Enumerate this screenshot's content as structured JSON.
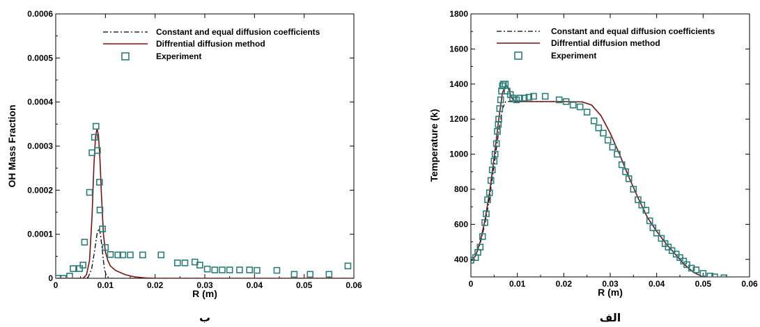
{
  "chart_data": [
    {
      "panel": "left",
      "type": "line",
      "caption": "ب",
      "xlabel": "R (m)",
      "ylabel": "OH Mass Fraction",
      "xlim": [
        0,
        0.06
      ],
      "ylim": [
        0,
        0.0006
      ],
      "xticks": [
        0,
        0.01,
        0.02,
        0.03,
        0.04,
        0.05,
        0.06
      ],
      "xtick_labels": [
        "0",
        "0.01",
        "0.02",
        "0.03",
        "0.04",
        "0.05",
        "0.06"
      ],
      "yticks": [
        0,
        0.0001,
        0.0002,
        0.0003,
        0.0004,
        0.0005,
        0.0006
      ],
      "ytick_labels": [
        "0",
        "0.0001",
        "0.0002",
        "0.0003",
        "0.0004",
        "0.0005",
        "0.0006"
      ],
      "legend_position": "top-right",
      "series": [
        {
          "name": "Constant and equal diffusion coefficients",
          "style": "dash-dot",
          "color": "#000000",
          "points": [
            [
              0,
              0
            ],
            [
              0.006,
              0
            ],
            [
              0.0065,
              2e-06
            ],
            [
              0.0072,
              2e-05
            ],
            [
              0.0078,
              6e-05
            ],
            [
              0.0083,
              0.0001
            ],
            [
              0.0087,
              0.000113
            ],
            [
              0.009,
              0.0001
            ],
            [
              0.0095,
              5e-05
            ],
            [
              0.0098,
              2e-05
            ],
            [
              0.0102,
              6e-06
            ],
            [
              0.0108,
              0
            ],
            [
              0.06,
              0
            ]
          ]
        },
        {
          "name": "Diffrential diffusion method",
          "style": "solid",
          "color": "#7a1212",
          "points": [
            [
              0,
              0
            ],
            [
              0.0055,
              0
            ],
            [
              0.0062,
              8e-06
            ],
            [
              0.0068,
              4e-05
            ],
            [
              0.0073,
              0.00014
            ],
            [
              0.0077,
              0.00026
            ],
            [
              0.008,
              0.00032
            ],
            [
              0.0083,
              0.00034
            ],
            [
              0.0086,
              0.000325
            ],
            [
              0.0089,
              0.00027
            ],
            [
              0.0092,
              0.00019
            ],
            [
              0.0096,
              0.0001
            ],
            [
              0.01,
              6e-05
            ],
            [
              0.0105,
              4e-05
            ],
            [
              0.011,
              2.8e-05
            ],
            [
              0.012,
              1.8e-05
            ],
            [
              0.014,
              8e-06
            ],
            [
              0.016,
              3e-06
            ],
            [
              0.018,
              1e-06
            ],
            [
              0.02,
              0
            ],
            [
              0.06,
              0
            ]
          ]
        },
        {
          "name": "Experiment",
          "style": "square-marker",
          "color": "#2a7d78",
          "points": [
            [
              0.0005,
              0
            ],
            [
              0.0015,
              0
            ],
            [
              0.0028,
              5e-06
            ],
            [
              0.0035,
              2.2e-05
            ],
            [
              0.0048,
              2.2e-05
            ],
            [
              0.0055,
              3e-05
            ],
            [
              0.0058,
              8.2e-05
            ],
            [
              0.0068,
              0.000195
            ],
            [
              0.0073,
              0.000285
            ],
            [
              0.0078,
              0.00032
            ],
            [
              0.0081,
              0.000345
            ],
            [
              0.0084,
              0.00029
            ],
            [
              0.0088,
              0.000218
            ],
            [
              0.0089,
              0.000155
            ],
            [
              0.0094,
              0.000112
            ],
            [
              0.01,
              7e-05
            ],
            [
              0.011,
              5.4e-05
            ],
            [
              0.0125,
              5.3e-05
            ],
            [
              0.0135,
              5.3e-05
            ],
            [
              0.015,
              5.3e-05
            ],
            [
              0.0175,
              5.3e-05
            ],
            [
              0.0212,
              5.3e-05
            ],
            [
              0.0245,
              3.5e-05
            ],
            [
              0.026,
              3.5e-05
            ],
            [
              0.028,
              3.7e-05
            ],
            [
              0.029,
              3e-05
            ],
            [
              0.0305,
              2.1e-05
            ],
            [
              0.032,
              1.9e-05
            ],
            [
              0.0335,
              1.9e-05
            ],
            [
              0.035,
              1.9e-05
            ],
            [
              0.037,
              1.9e-05
            ],
            [
              0.039,
              1.9e-05
            ],
            [
              0.0405,
              1.8e-05
            ],
            [
              0.0445,
              1.8e-05
            ],
            [
              0.048,
              9e-06
            ],
            [
              0.0512,
              9e-06
            ],
            [
              0.055,
              9e-06
            ],
            [
              0.0588,
              2.8e-05
            ]
          ]
        }
      ]
    },
    {
      "panel": "right",
      "type": "line",
      "caption": "الف",
      "xlabel": "R (m)",
      "ylabel": "Temperature (k)",
      "xlim": [
        0,
        0.06
      ],
      "ylim": [
        300,
        1800
      ],
      "xticks": [
        0,
        0.01,
        0.02,
        0.03,
        0.04,
        0.05,
        0.06
      ],
      "xtick_labels": [
        "0",
        "0.01",
        "0.02",
        "0.03",
        "0.04",
        "0.05",
        "0.06"
      ],
      "yticks": [
        400,
        600,
        800,
        1000,
        1200,
        1400,
        1600,
        1800
      ],
      "ytick_labels": [
        "400",
        "600",
        "800",
        "1000",
        "1200",
        "1400",
        "1600",
        "1800"
      ],
      "legend_position": "top-right",
      "series": [
        {
          "name": "Constant and equal diffusion coefficients",
          "style": "dash-dot",
          "color": "#000000",
          "points": [
            [
              0,
              390
            ],
            [
              0.001,
              420
            ],
            [
              0.002,
              490
            ],
            [
              0.003,
              600
            ],
            [
              0.004,
              750
            ],
            [
              0.005,
              940
            ],
            [
              0.006,
              1130
            ],
            [
              0.0068,
              1260
            ],
            [
              0.0075,
              1300
            ],
            [
              0.0085,
              1300
            ],
            [
              0.01,
              1300
            ],
            [
              0.015,
              1300
            ],
            [
              0.02,
              1300
            ],
            [
              0.024,
              1298
            ],
            [
              0.026,
              1280
            ],
            [
              0.028,
              1220
            ],
            [
              0.03,
              1120
            ],
            [
              0.032,
              1000
            ],
            [
              0.034,
              870
            ],
            [
              0.036,
              750
            ],
            [
              0.038,
              640
            ],
            [
              0.04,
              560
            ],
            [
              0.042,
              490
            ],
            [
              0.044,
              430
            ],
            [
              0.046,
              370
            ],
            [
              0.048,
              325
            ],
            [
              0.05,
              300
            ],
            [
              0.055,
              295
            ],
            [
              0.06,
              295
            ]
          ]
        },
        {
          "name": "Diffrential diffusion method",
          "style": "solid",
          "color": "#7a1212",
          "points": [
            [
              0,
              390
            ],
            [
              0.001,
              420
            ],
            [
              0.002,
              500
            ],
            [
              0.003,
              620
            ],
            [
              0.004,
              780
            ],
            [
              0.005,
              980
            ],
            [
              0.006,
              1200
            ],
            [
              0.0068,
              1350
            ],
            [
              0.0075,
              1395
            ],
            [
              0.008,
              1380
            ],
            [
              0.0088,
              1320
            ],
            [
              0.0095,
              1300
            ],
            [
              0.01,
              1300
            ],
            [
              0.015,
              1300
            ],
            [
              0.02,
              1300
            ],
            [
              0.024,
              1298
            ],
            [
              0.026,
              1280
            ],
            [
              0.028,
              1220
            ],
            [
              0.03,
              1120
            ],
            [
              0.032,
              1000
            ],
            [
              0.034,
              870
            ],
            [
              0.036,
              750
            ],
            [
              0.038,
              640
            ],
            [
              0.04,
              560
            ],
            [
              0.042,
              490
            ],
            [
              0.044,
              430
            ],
            [
              0.046,
              370
            ],
            [
              0.048,
              325
            ],
            [
              0.05,
              300
            ],
            [
              0.055,
              295
            ],
            [
              0.06,
              295
            ]
          ]
        },
        {
          "name": "Experiment",
          "style": "square-marker",
          "color": "#2a7d78",
          "points": [
            [
              0,
              395
            ],
            [
              0.001,
              410
            ],
            [
              0.0015,
              440
            ],
            [
              0.002,
              470
            ],
            [
              0.0025,
              530
            ],
            [
              0.003,
              610
            ],
            [
              0.0033,
              660
            ],
            [
              0.0036,
              740
            ],
            [
              0.004,
              780
            ],
            [
              0.0043,
              850
            ],
            [
              0.0046,
              910
            ],
            [
              0.005,
              960
            ],
            [
              0.0052,
              1000
            ],
            [
              0.0055,
              1060
            ],
            [
              0.0057,
              1130
            ],
            [
              0.0059,
              1170
            ],
            [
              0.006,
              1200
            ],
            [
              0.0062,
              1260
            ],
            [
              0.0064,
              1310
            ],
            [
              0.0066,
              1360
            ],
            [
              0.0068,
              1390
            ],
            [
              0.007,
              1400
            ],
            [
              0.0074,
              1400
            ],
            [
              0.0078,
              1360
            ],
            [
              0.0085,
              1340
            ],
            [
              0.009,
              1320
            ],
            [
              0.0098,
              1310
            ],
            [
              0.0105,
              1320
            ],
            [
              0.0115,
              1320
            ],
            [
              0.0125,
              1325
            ],
            [
              0.0135,
              1330
            ],
            [
              0.016,
              1330
            ],
            [
              0.019,
              1310
            ],
            [
              0.0205,
              1300
            ],
            [
              0.022,
              1280
            ],
            [
              0.0235,
              1270
            ],
            [
              0.025,
              1240
            ],
            [
              0.0265,
              1190
            ],
            [
              0.0275,
              1150
            ],
            [
              0.0285,
              1120
            ],
            [
              0.0295,
              1080
            ],
            [
              0.0305,
              1040
            ],
            [
              0.0315,
              1000
            ],
            [
              0.0325,
              940
            ],
            [
              0.0333,
              900
            ],
            [
              0.034,
              860
            ],
            [
              0.035,
              800
            ],
            [
              0.036,
              740
            ],
            [
              0.0368,
              710
            ],
            [
              0.0377,
              680
            ],
            [
              0.0385,
              620
            ],
            [
              0.0392,
              580
            ],
            [
              0.04,
              550
            ],
            [
              0.041,
              520
            ],
            [
              0.0418,
              490
            ],
            [
              0.0425,
              470
            ],
            [
              0.0433,
              450
            ],
            [
              0.0442,
              430
            ],
            [
              0.045,
              410
            ],
            [
              0.0458,
              390
            ],
            [
              0.0465,
              370
            ],
            [
              0.0475,
              350
            ],
            [
              0.0485,
              340
            ],
            [
              0.05,
              320
            ],
            [
              0.0515,
              305
            ],
            [
              0.0525,
              300
            ],
            [
              0.0545,
              295
            ]
          ]
        }
      ]
    }
  ]
}
